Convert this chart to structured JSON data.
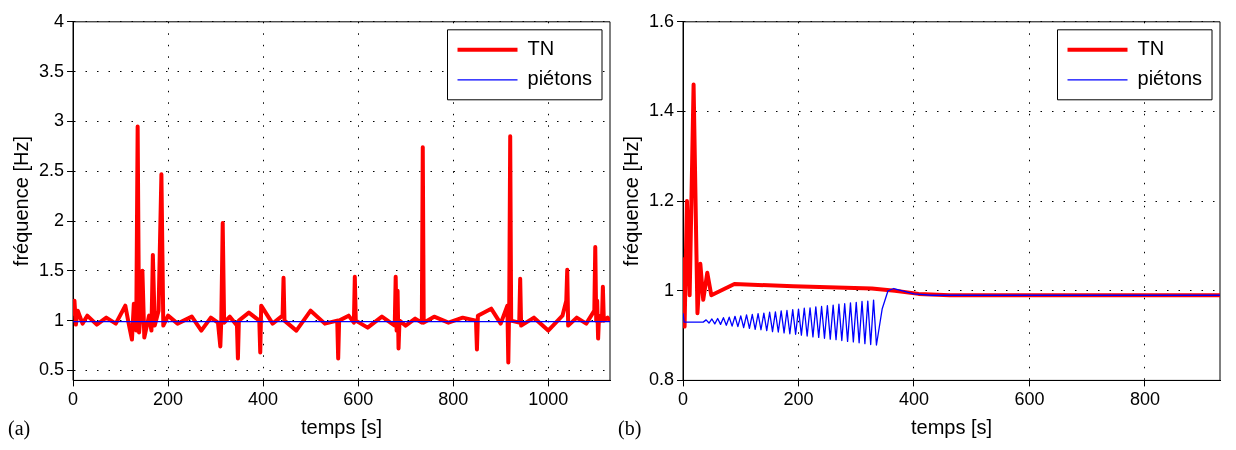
{
  "chart_data": [
    {
      "type": "line",
      "xlabel": "temps [s]",
      "ylabel": "fréquence [Hz]",
      "annotations": [
        "(a)"
      ],
      "legend": "top right",
      "grid": true,
      "xlim": [
        0,
        1130
      ],
      "ylim": [
        0.4,
        4
      ],
      "xticks": [
        0,
        200,
        400,
        600,
        800,
        1000
      ],
      "yticks": [
        0.5,
        1,
        1.5,
        2,
        2.5,
        3,
        3.5,
        4
      ],
      "series": [
        {
          "name": "TN",
          "color": "#ff0000",
          "x": [
            0,
            3,
            6,
            10,
            20,
            30,
            50,
            70,
            90,
            110,
            118,
            124,
            128,
            133,
            136,
            139,
            143,
            146,
            150,
            160,
            165,
            168,
            172,
            180,
            186,
            190,
            200,
            220,
            250,
            270,
            290,
            305,
            310,
            312,
            315,
            318,
            330,
            345,
            347,
            349,
            370,
            392,
            394,
            396,
            420,
            441,
            443,
            445,
            470,
            500,
            530,
            556,
            558,
            560,
            580,
            591,
            593,
            595,
            620,
            650,
            677,
            679,
            681,
            683,
            685,
            687,
            700,
            720,
            734,
            736,
            738,
            760,
            790,
            820,
            848,
            850,
            852,
            880,
            900,
            914,
            916,
            918,
            920,
            922,
            939,
            941,
            943,
            970,
            1000,
            1030,
            1038,
            1040,
            1042,
            1060,
            1080,
            1097,
            1099,
            1101,
            1103,
            1105,
            1107,
            1113,
            1115,
            1117,
            1125,
            1130
          ],
          "values": [
            1.05,
            1.2,
            0.96,
            1.1,
            0.97,
            1.05,
            0.96,
            1.03,
            0.97,
            1.15,
            0.95,
            0.81,
            1.17,
            0.9,
            2.95,
            0.88,
            1.1,
            1.5,
            0.83,
            1.05,
            0.9,
            1.66,
            0.95,
            1.1,
            2.47,
            0.95,
            1.05,
            0.97,
            1.04,
            0.9,
            1.03,
            0.98,
            0.74,
            1.0,
            1.98,
            0.98,
            1.04,
            0.95,
            0.62,
            1.0,
            1.08,
            1.0,
            0.68,
            1.15,
            0.97,
            1.05,
            1.43,
            1.0,
            0.9,
            1.1,
            0.97,
            1.0,
            0.62,
            1.0,
            1.05,
            0.98,
            1.44,
            1.0,
            0.93,
            1.04,
            0.95,
            1.44,
            0.9,
            1.3,
            0.72,
            1.0,
            0.95,
            1.02,
            0.98,
            2.74,
            0.98,
            1.04,
            0.98,
            1.03,
            1.0,
            0.71,
            1.05,
            1.12,
            0.97,
            1.15,
            0.58,
            1.2,
            2.85,
            1.0,
            0.98,
            1.42,
            0.95,
            1.03,
            0.9,
            1.05,
            1.2,
            1.51,
            0.95,
            1.03,
            0.97,
            1.1,
            1.74,
            1.0,
            1.2,
            0.82,
            1.05,
            1.0,
            1.34,
            1.0,
            1.03,
            1.0
          ]
        },
        {
          "name": "piétons",
          "color": "#0000ff",
          "x": [
            0,
            200,
            400,
            600,
            800,
            1000,
            1130
          ],
          "values": [
            0.99,
            0.99,
            0.99,
            0.99,
            0.99,
            0.99,
            0.99
          ]
        }
      ]
    },
    {
      "type": "line",
      "xlabel": "temps [s]",
      "ylabel": "fréquence [Hz]",
      "annotations": [
        "(b)"
      ],
      "legend": "top right",
      "grid": true,
      "xlim": [
        0,
        930
      ],
      "ylim": [
        0.8,
        1.6
      ],
      "xticks": [
        0,
        200,
        400,
        600,
        800
      ],
      "yticks": [
        0.8,
        1,
        1.2,
        1.4,
        1.6
      ],
      "series": [
        {
          "name": "TN",
          "color": "#ff0000",
          "x": [
            0,
            1.4,
            2.7,
            6.8,
            11.5,
            18.3,
            25,
            30,
            35,
            42,
            49,
            89,
            191,
            327,
            367,
            408,
            462,
            930
          ],
          "values": [
            0.93,
            1.07,
            0.92,
            1.2,
            0.99,
            1.46,
            0.95,
            1.06,
            0.98,
            1.04,
            0.99,
            1.015,
            1.01,
            1.005,
            1.0,
            0.993,
            0.99,
            0.99
          ]
        },
        {
          "name": "piétons",
          "color": "#0000ff",
          "x": [
            0,
            2,
            35,
            40,
            45,
            50,
            55,
            60,
            65,
            70,
            75,
            80,
            85,
            90,
            95,
            100,
            105,
            110,
            115,
            120,
            125,
            130,
            135,
            140,
            145,
            150,
            155,
            160,
            165,
            170,
            175,
            180,
            185,
            190,
            195,
            200,
            205,
            210,
            215,
            220,
            225,
            230,
            235,
            240,
            245,
            250,
            255,
            260,
            265,
            270,
            275,
            280,
            285,
            290,
            295,
            300,
            305,
            310,
            315,
            320,
            325,
            330,
            335,
            345,
            355,
            365,
            400,
            430,
            930
          ],
          "values": [
            0.95,
            0.93,
            0.93,
            0.935,
            0.928,
            0.937,
            0.926,
            0.938,
            0.925,
            0.94,
            0.923,
            0.941,
            0.921,
            0.943,
            0.92,
            0.944,
            0.918,
            0.946,
            0.916,
            0.947,
            0.914,
            0.949,
            0.913,
            0.95,
            0.911,
            0.952,
            0.909,
            0.953,
            0.908,
            0.955,
            0.906,
            0.956,
            0.904,
            0.958,
            0.903,
            0.959,
            0.901,
            0.961,
            0.899,
            0.962,
            0.897,
            0.964,
            0.896,
            0.965,
            0.894,
            0.967,
            0.892,
            0.968,
            0.891,
            0.97,
            0.889,
            0.971,
            0.887,
            0.973,
            0.886,
            0.974,
            0.884,
            0.976,
            0.882,
            0.977,
            0.88,
            0.979,
            0.879,
            0.96,
            1.0,
            1.005,
            0.993,
            0.99,
            0.99
          ]
        }
      ]
    }
  ]
}
